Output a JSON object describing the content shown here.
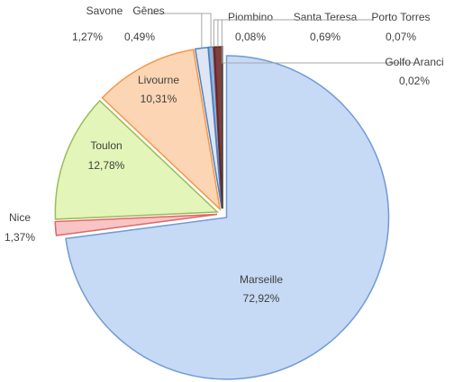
{
  "chart_data": {
    "type": "pie",
    "categories": [
      "Marseille",
      "Nice",
      "Toulon",
      "Livourne",
      "Savone",
      "Gênes",
      "Piombino",
      "Santa Teresa",
      "Porto Torres",
      "Golfo Aranci"
    ],
    "values": [
      72.92,
      1.37,
      12.78,
      10.31,
      1.27,
      0.49,
      0.08,
      0.69,
      0.07,
      0.02
    ],
    "value_labels": [
      "72,92%",
      "1,37%",
      "12,78%",
      "10,31%",
      "1,27%",
      "0,49%",
      "0,08%",
      "0,69%",
      "0,07%",
      "0,02%"
    ],
    "colors": [
      "#c6d9f5",
      "#f8c4c4",
      "#e3f5b8",
      "#fcd5b4",
      "#dde6f2",
      "#8fb4e3",
      "#c0504d",
      "#7f3f3f",
      "#9c6b3b",
      "#5a5a5a"
    ],
    "strokes": [
      "#6f9ad6",
      "#e06666",
      "#9bbb59",
      "#f79646",
      "#4f81bd",
      "#4f81bd",
      "#943634",
      "#632523",
      "#7f5f3f",
      "#404040"
    ]
  }
}
